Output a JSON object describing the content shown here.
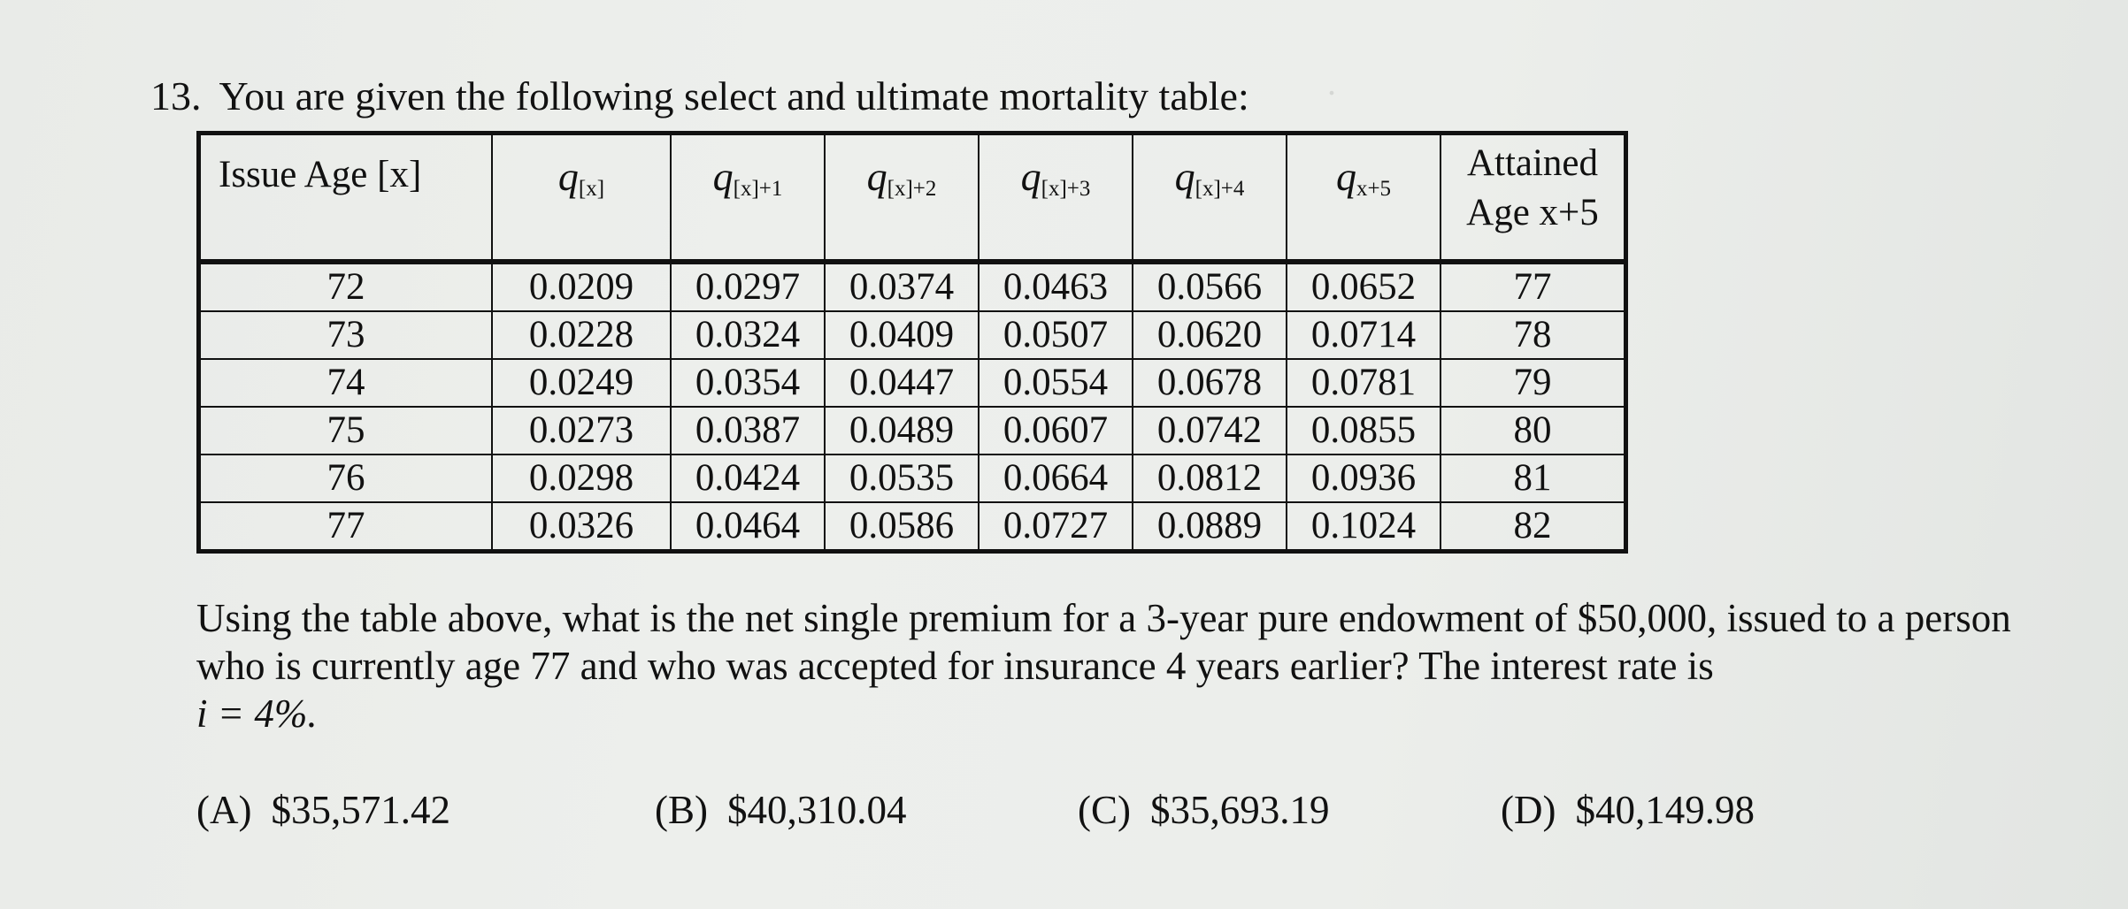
{
  "question": {
    "number": "13.",
    "title": "You are given the following select and ultimate mortality table:",
    "prompt": "Using the table above, what is the net single premium for a 3-year pure endowment of $50,000, issued to a person who is currently age 77 and who was accepted for insurance 4 years earlier?  The interest rate is",
    "interest": "i = 4%."
  },
  "table": {
    "headers": {
      "issue_age": "Issue Age [x]",
      "q0_sub": "[x]",
      "q1_sub": "[x]+1",
      "q2_sub": "[x]+2",
      "q3_sub": "[x]+3",
      "q4_sub": "[x]+4",
      "q5_sub": "x+5",
      "attained_line1": "Attained",
      "attained_line2": "Age x+5"
    },
    "rows": [
      {
        "age": "72",
        "q": [
          "0.0209",
          "0.0297",
          "0.0374",
          "0.0463",
          "0.0566",
          "0.0652"
        ],
        "attained": "77"
      },
      {
        "age": "73",
        "q": [
          "0.0228",
          "0.0324",
          "0.0409",
          "0.0507",
          "0.0620",
          "0.0714"
        ],
        "attained": "78"
      },
      {
        "age": "74",
        "q": [
          "0.0249",
          "0.0354",
          "0.0447",
          "0.0554",
          "0.0678",
          "0.0781"
        ],
        "attained": "79"
      },
      {
        "age": "75",
        "q": [
          "0.0273",
          "0.0387",
          "0.0489",
          "0.0607",
          "0.0742",
          "0.0855"
        ],
        "attained": "80"
      },
      {
        "age": "76",
        "q": [
          "0.0298",
          "0.0424",
          "0.0535",
          "0.0664",
          "0.0812",
          "0.0936"
        ],
        "attained": "81"
      },
      {
        "age": "77",
        "q": [
          "0.0326",
          "0.0464",
          "0.0586",
          "0.0727",
          "0.0889",
          "0.1024"
        ],
        "attained": "82"
      }
    ]
  },
  "options": [
    {
      "label": "(A)",
      "value": "$35,571.42"
    },
    {
      "label": "(B)",
      "value": "$40,310.04"
    },
    {
      "label": "(C)",
      "value": "$35,693.19"
    },
    {
      "label": "(D)",
      "value": "$40,149.98"
    }
  ]
}
